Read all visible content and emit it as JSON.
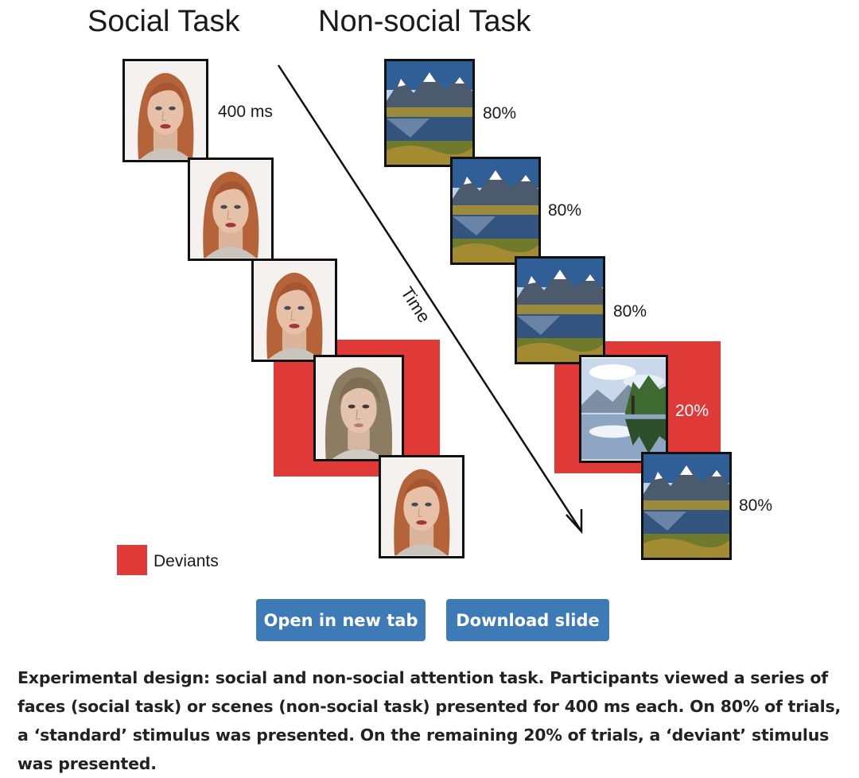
{
  "figure": {
    "social_title": "Social Task",
    "nonsocial_title": "Non-social Task",
    "time_label": "Time",
    "legend_label": "Deviants",
    "social_duration_label": "400 ms",
    "nonsocial_percent_labels": [
      "80%",
      "80%",
      "80%",
      "20%",
      "80%"
    ],
    "deviant_color": "#e03a38",
    "social_stimuli": [
      "standard face",
      "standard face",
      "standard face",
      "deviant face",
      "standard face"
    ],
    "nonsocial_stimuli": [
      "standard scene",
      "standard scene",
      "standard scene",
      "deviant scene",
      "standard scene"
    ]
  },
  "actions": {
    "open_label": "Open in new tab",
    "download_label": "Download slide",
    "button_color": "#3e7ab5"
  },
  "caption": {
    "text": "Experimental design: social and non-social attention task. Participants viewed a series of faces (social task) or scenes (non-social task) presented for 400 ms each. On 80% of trials, a ‘standard’ stimulus was presented. On the remaining 20% of trials, a ‘deviant’ stimulus was presented."
  }
}
